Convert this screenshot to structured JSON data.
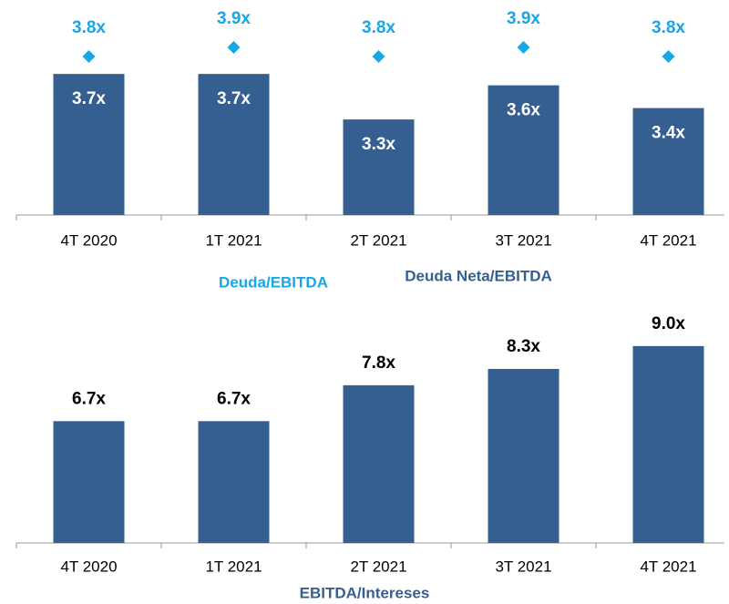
{
  "chart_data": [
    {
      "type": "bar",
      "categories": [
        "4T 2020",
        "1T 2021",
        "2T 2021",
        "3T 2021",
        "4T 2021"
      ],
      "series": [
        {
          "name": "Deuda/EBITDA",
          "type": "scatter",
          "marker": "diamond",
          "axis": "y2",
          "color": "#17a6e6",
          "values": [
            3.8,
            3.9,
            3.8,
            3.9,
            3.8
          ],
          "value_labels": [
            "3.8x",
            "3.9x",
            "3.8x",
            "3.9x",
            "3.8x"
          ]
        },
        {
          "name": "Deuda Neta/EBITDA",
          "type": "bar",
          "color": "#365f91",
          "values": [
            3.7,
            3.7,
            3.3,
            3.6,
            3.4
          ],
          "value_labels": [
            "3.7x",
            "3.7x",
            "3.3x",
            "3.6x",
            "3.4x"
          ]
        }
      ],
      "ylim": [
        2.46,
        4.35
      ],
      "y2lim": [
        2.06,
        4.42
      ]
    },
    {
      "type": "bar",
      "categories": [
        "4T 2020",
        "1T 2021",
        "2T 2021",
        "3T 2021",
        "4T 2021"
      ],
      "series": [
        {
          "name": "EBITDA/Intereses",
          "type": "bar",
          "color": "#365f91",
          "values": [
            6.7,
            6.7,
            7.8,
            8.3,
            9.0
          ],
          "value_labels": [
            "6.7x",
            "6.7x",
            "7.8x",
            "8.3x",
            "9.0x"
          ]
        }
      ],
      "ylim": [
        2.97,
        10.67
      ]
    }
  ]
}
